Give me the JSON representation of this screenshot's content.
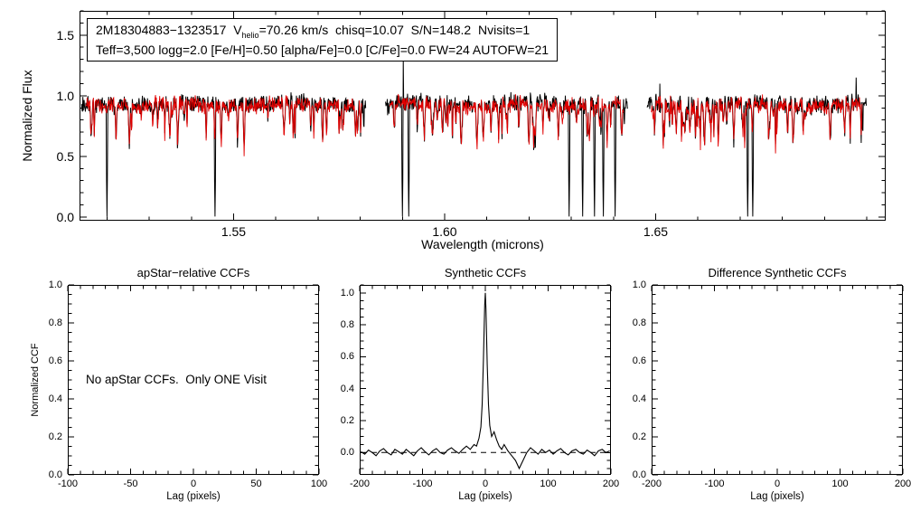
{
  "annotation": {
    "line1_pre": "2M18304883−1323517  V",
    "line1_sub": "helio",
    "line1_post": "=70.26 km/s  chisq=10.07  S/N=148.2  Nvisits=1",
    "line2": "Teff=3,500 logg=2.0 [Fe/H]=0.50 [alpha/Fe]=0.0 [C/Fe]=0.0 FW=24 AUTOFW=21"
  },
  "chart_data": [
    {
      "type": "line",
      "title": "",
      "xlabel": "Wavelength (microns)",
      "ylabel": "Normalized Flux",
      "xlim": [
        1.5135,
        1.7045
      ],
      "ylim": [
        -0.03,
        1.7
      ],
      "xticks": [
        {
          "v": 1.55,
          "label": "1.55"
        },
        {
          "v": 1.6,
          "label": "1.60"
        },
        {
          "v": 1.65,
          "label": "1.65"
        }
      ],
      "yticks": [
        {
          "v": 0.0,
          "label": "0.0"
        },
        {
          "v": 0.5,
          "label": "0.5"
        },
        {
          "v": 1.0,
          "label": "1.0"
        },
        {
          "v": 1.5,
          "label": "1.5"
        }
      ],
      "minor_x_step": 0.01,
      "minor_y_step": 0.1,
      "segments": [
        [
          1.514,
          1.5815
        ],
        [
          1.586,
          1.6435
        ],
        [
          1.648,
          1.7
        ]
      ],
      "series": [
        {
          "name": "observed spectrum",
          "color": "#000000",
          "baseline": 0.935,
          "noise": 0.09,
          "seed": 101
        },
        {
          "name": "best-fit synthetic spectrum",
          "color": "#e10000",
          "baseline": 0.925,
          "noise": 0.08,
          "seed": 202
        }
      ],
      "pattern_seed": 777,
      "deep_absorption_lines": [
        1.52,
        1.5456,
        1.59,
        1.5915,
        1.6295,
        1.6327,
        1.6355,
        1.6376,
        1.6404,
        1.6718,
        1.673
      ],
      "up_spikes": [
        [
          1.5902,
          1.32
        ],
        [
          1.651,
          1.1
        ],
        [
          1.6975,
          1.15
        ]
      ]
    },
    {
      "type": "line",
      "title": "apStar−relative CCFs",
      "xlabel": "Lag (pixels)",
      "ylabel": "Normalized CCF",
      "xlim": [
        -100,
        100
      ],
      "ylim": [
        0,
        1
      ],
      "xticks": [
        {
          "v": -100,
          "label": "-100"
        },
        {
          "v": -50,
          "label": "-50"
        },
        {
          "v": 0,
          "label": "0"
        },
        {
          "v": 50,
          "label": "50"
        },
        {
          "v": 100,
          "label": "100"
        }
      ],
      "yticks": [
        {
          "v": 0.0,
          "label": "0.0"
        },
        {
          "v": 0.2,
          "label": "0.2"
        },
        {
          "v": 0.4,
          "label": "0.4"
        },
        {
          "v": 0.6,
          "label": "0.6"
        },
        {
          "v": 0.8,
          "label": "0.8"
        },
        {
          "v": 1.0,
          "label": "1.0"
        }
      ],
      "minor_x_step": 10,
      "minor_y_step": 0.05,
      "note": "No apStar CCFs.  Only ONE Visit",
      "points": []
    },
    {
      "type": "line",
      "title": "Synthetic CCFs",
      "xlabel": "Lag (pixels)",
      "ylabel": "",
      "xlim": [
        -200,
        200
      ],
      "ylim": [
        -0.14,
        1.05
      ],
      "xticks": [
        {
          "v": -200,
          "label": "-200"
        },
        {
          "v": -100,
          "label": "-100"
        },
        {
          "v": 0,
          "label": "0"
        },
        {
          "v": 100,
          "label": "100"
        },
        {
          "v": 200,
          "label": "200"
        }
      ],
      "yticks": [
        {
          "v": 0.0,
          "label": "0.0"
        },
        {
          "v": 0.2,
          "label": "0.2"
        },
        {
          "v": 0.4,
          "label": "0.4"
        },
        {
          "v": 0.6,
          "label": "0.6"
        },
        {
          "v": 0.8,
          "label": "0.8"
        },
        {
          "v": 1.0,
          "label": "1.0"
        }
      ],
      "minor_x_step": 20,
      "minor_y_step": 0.05,
      "dashed_zero_line": true,
      "points": [
        [
          -198,
          0.005
        ],
        [
          -192,
          -0.01
        ],
        [
          -186,
          0.015
        ],
        [
          -180,
          0.0
        ],
        [
          -174,
          -0.02
        ],
        [
          -168,
          0.01
        ],
        [
          -162,
          0.025
        ],
        [
          -156,
          0.0
        ],
        [
          -150,
          -0.015
        ],
        [
          -144,
          0.02
        ],
        [
          -138,
          0.005
        ],
        [
          -132,
          -0.01
        ],
        [
          -126,
          0.02
        ],
        [
          -120,
          0.0
        ],
        [
          -114,
          -0.02
        ],
        [
          -108,
          0.01
        ],
        [
          -102,
          0.03
        ],
        [
          -96,
          0.005
        ],
        [
          -90,
          -0.015
        ],
        [
          -84,
          0.01
        ],
        [
          -78,
          0.025
        ],
        [
          -72,
          0.0
        ],
        [
          -66,
          -0.01
        ],
        [
          -60,
          0.015
        ],
        [
          -54,
          0.03
        ],
        [
          -48,
          0.01
        ],
        [
          -42,
          -0.005
        ],
        [
          -36,
          0.02
        ],
        [
          -30,
          0.04
        ],
        [
          -24,
          0.02
        ],
        [
          -18,
          0.05
        ],
        [
          -14,
          0.04
        ],
        [
          -10,
          0.09
        ],
        [
          -7,
          0.16
        ],
        [
          -5,
          0.3
        ],
        [
          -3,
          0.58
        ],
        [
          -1,
          0.92
        ],
        [
          0,
          1.0
        ],
        [
          1,
          0.9
        ],
        [
          3,
          0.55
        ],
        [
          5,
          0.3
        ],
        [
          7,
          0.17
        ],
        [
          10,
          0.1
        ],
        [
          14,
          0.13
        ],
        [
          18,
          0.08
        ],
        [
          22,
          0.04
        ],
        [
          26,
          0.02
        ],
        [
          30,
          0.05
        ],
        [
          36,
          0.01
        ],
        [
          42,
          -0.02
        ],
        [
          48,
          -0.05
        ],
        [
          54,
          -0.1
        ],
        [
          60,
          -0.05
        ],
        [
          66,
          0.0
        ],
        [
          72,
          0.03
        ],
        [
          78,
          0.01
        ],
        [
          84,
          -0.01
        ],
        [
          90,
          0.02
        ],
        [
          96,
          0.0
        ],
        [
          102,
          0.015
        ],
        [
          108,
          -0.01
        ],
        [
          114,
          0.01
        ],
        [
          120,
          0.025
        ],
        [
          126,
          0.0
        ],
        [
          132,
          -0.015
        ],
        [
          138,
          0.01
        ],
        [
          144,
          0.02
        ],
        [
          150,
          0.0
        ],
        [
          156,
          -0.01
        ],
        [
          162,
          0.015
        ],
        [
          168,
          0.0
        ],
        [
          174,
          -0.02
        ],
        [
          180,
          0.01
        ],
        [
          186,
          0.02
        ],
        [
          192,
          0.0
        ],
        [
          198,
          0.01
        ]
      ]
    },
    {
      "type": "line",
      "title": "Difference Synthetic CCFs",
      "xlabel": "Lag (pixels)",
      "ylabel": "",
      "xlim": [
        -200,
        200
      ],
      "ylim": [
        0,
        1
      ],
      "xticks": [
        {
          "v": -200,
          "label": "-200"
        },
        {
          "v": -100,
          "label": "-100"
        },
        {
          "v": 0,
          "label": "0"
        },
        {
          "v": 100,
          "label": "100"
        },
        {
          "v": 200,
          "label": "200"
        }
      ],
      "yticks": [
        {
          "v": 0.0,
          "label": "0.0"
        },
        {
          "v": 0.2,
          "label": "0.2"
        },
        {
          "v": 0.4,
          "label": "0.4"
        },
        {
          "v": 0.6,
          "label": "0.6"
        },
        {
          "v": 0.8,
          "label": "0.8"
        },
        {
          "v": 1.0,
          "label": "1.0"
        }
      ],
      "minor_x_step": 20,
      "minor_y_step": 0.05,
      "points": []
    }
  ]
}
